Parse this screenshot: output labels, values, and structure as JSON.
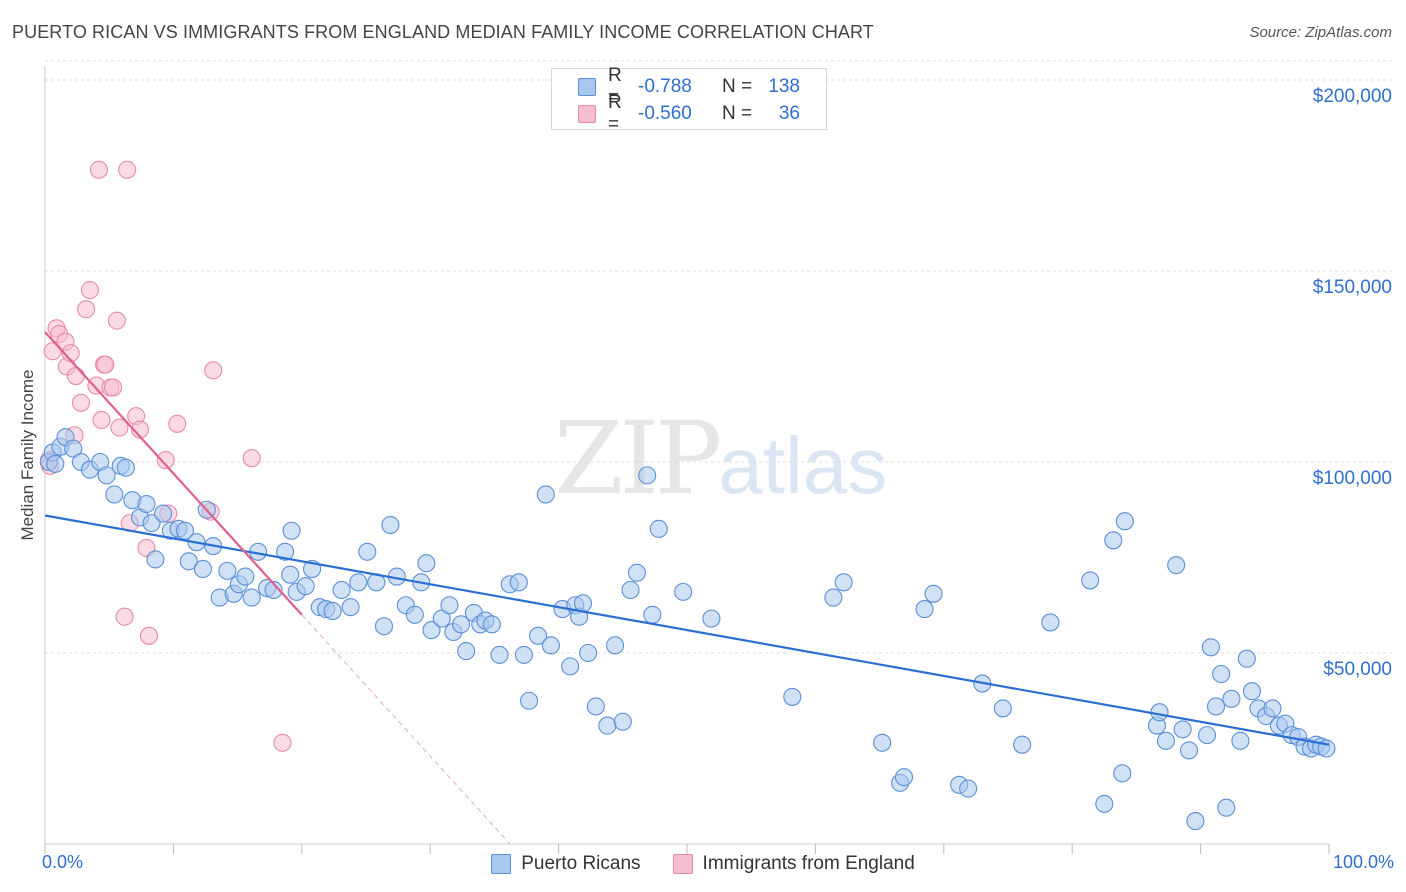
{
  "header": {
    "title": "PUERTO RICAN VS IMMIGRANTS FROM ENGLAND MEDIAN FAMILY INCOME CORRELATION CHART",
    "source": "Source: ZipAtlas.com"
  },
  "watermark": {
    "zip": "ZIP",
    "atlas": "atlas"
  },
  "legend_top": [
    {
      "r_label": "R =",
      "r_value": "-0.788",
      "n_label": "N =",
      "n_value": "138"
    },
    {
      "r_label": "R =",
      "r_value": "-0.560",
      "n_label": "N =",
      "n_value": "36"
    }
  ],
  "legend_bottom": [
    "Puerto Ricans",
    "Immigrants from England"
  ],
  "colors": {
    "blue_fill": "#a9c8ef",
    "blue_stroke": "#5b8fd6",
    "blue_line": "#2a6fd1",
    "pink_fill": "#f6bdd0",
    "pink_stroke": "#e88aa9",
    "pink_line": "#e0608b",
    "grid": "#dddddd",
    "tick_text": "#2f6fd0"
  },
  "chart_data": {
    "type": "scatter",
    "title": "PUERTO RICAN VS IMMIGRANTS FROM ENGLAND MEDIAN FAMILY INCOME CORRELATION CHART",
    "xlabel": "",
    "ylabel": "Median Family Income",
    "xlim": [
      0,
      100
    ],
    "ylim": [
      0,
      205000
    ],
    "x_tick_labels": [
      "0.0%",
      "100.0%"
    ],
    "y_ticks": [
      {
        "value": 50000,
        "label": "$50,000"
      },
      {
        "value": 100000,
        "label": "$100,000"
      },
      {
        "value": 150000,
        "label": "$150,000"
      },
      {
        "value": 200000,
        "label": "$200,000"
      }
    ],
    "grid": "horizontal dashed",
    "legend_placement": "top-center",
    "series": [
      {
        "name": "Puerto Ricans",
        "r": -0.788,
        "n": 138,
        "trend": {
          "x": [
            0,
            100
          ],
          "y": [
            86000,
            26000
          ],
          "style": "solid"
        },
        "points": [
          [
            0.3,
            100000
          ],
          [
            0.6,
            102500
          ],
          [
            0.8,
            99500
          ],
          [
            1.2,
            104000
          ],
          [
            1.6,
            106500
          ],
          [
            2.2,
            103500
          ],
          [
            2.8,
            100000
          ],
          [
            3.5,
            98000
          ],
          [
            4.3,
            100000
          ],
          [
            4.8,
            96500
          ],
          [
            5.4,
            91500
          ],
          [
            5.9,
            99000
          ],
          [
            6.3,
            98500
          ],
          [
            6.8,
            90000
          ],
          [
            7.4,
            85500
          ],
          [
            7.9,
            89000
          ],
          [
            8.3,
            84000
          ],
          [
            8.6,
            74500
          ],
          [
            9.2,
            86500
          ],
          [
            9.8,
            82000
          ],
          [
            10.4,
            82500
          ],
          [
            10.9,
            82000
          ],
          [
            11.2,
            74000
          ],
          [
            11.8,
            79000
          ],
          [
            12.3,
            72000
          ],
          [
            12.6,
            87500
          ],
          [
            13.1,
            78000
          ],
          [
            13.6,
            64500
          ],
          [
            14.2,
            71500
          ],
          [
            14.7,
            65500
          ],
          [
            15.1,
            68000
          ],
          [
            15.6,
            70000
          ],
          [
            16.1,
            64500
          ],
          [
            16.6,
            76500
          ],
          [
            17.3,
            67000
          ],
          [
            17.8,
            66500
          ],
          [
            18.7,
            76500
          ],
          [
            19.1,
            70500
          ],
          [
            19.2,
            82000
          ],
          [
            19.6,
            66000
          ],
          [
            20.3,
            67500
          ],
          [
            20.8,
            72000
          ],
          [
            21.4,
            62000
          ],
          [
            21.9,
            61500
          ],
          [
            22.4,
            61000
          ],
          [
            23.1,
            66500
          ],
          [
            23.8,
            62000
          ],
          [
            24.4,
            68500
          ],
          [
            25.1,
            76500
          ],
          [
            25.8,
            68500
          ],
          [
            26.4,
            57000
          ],
          [
            26.9,
            83500
          ],
          [
            27.4,
            70000
          ],
          [
            28.1,
            62500
          ],
          [
            28.8,
            60000
          ],
          [
            29.3,
            68500
          ],
          [
            29.7,
            73500
          ],
          [
            30.1,
            56000
          ],
          [
            30.9,
            59000
          ],
          [
            31.5,
            62500
          ],
          [
            31.8,
            55500
          ],
          [
            32.4,
            57500
          ],
          [
            32.8,
            50500
          ],
          [
            33.4,
            60500
          ],
          [
            33.9,
            57500
          ],
          [
            34.3,
            58500
          ],
          [
            34.8,
            57500
          ],
          [
            35.4,
            49500
          ],
          [
            36.2,
            68000
          ],
          [
            36.9,
            68500
          ],
          [
            37.3,
            49500
          ],
          [
            37.7,
            37500
          ],
          [
            38.4,
            54500
          ],
          [
            39.0,
            91500
          ],
          [
            39.4,
            52000
          ],
          [
            40.3,
            61500
          ],
          [
            40.9,
            46500
          ],
          [
            41.3,
            62500
          ],
          [
            41.6,
            59500
          ],
          [
            41.9,
            63000
          ],
          [
            42.3,
            50000
          ],
          [
            42.9,
            36000
          ],
          [
            43.8,
            31000
          ],
          [
            44.4,
            52000
          ],
          [
            45.0,
            32000
          ],
          [
            45.6,
            66500
          ],
          [
            46.1,
            71000
          ],
          [
            46.9,
            96500
          ],
          [
            47.3,
            60000
          ],
          [
            47.8,
            82500
          ],
          [
            49.7,
            66000
          ],
          [
            51.9,
            59000
          ],
          [
            58.2,
            38500
          ],
          [
            61.4,
            64500
          ],
          [
            62.2,
            68500
          ],
          [
            65.2,
            26500
          ],
          [
            66.6,
            16000
          ],
          [
            66.9,
            17500
          ],
          [
            68.5,
            61500
          ],
          [
            69.2,
            65500
          ],
          [
            71.2,
            15500
          ],
          [
            71.9,
            14500
          ],
          [
            73.0,
            42000
          ],
          [
            74.6,
            35500
          ],
          [
            76.1,
            26000
          ],
          [
            78.3,
            58000
          ],
          [
            81.4,
            69000
          ],
          [
            82.5,
            10500
          ],
          [
            83.2,
            79500
          ],
          [
            83.9,
            18500
          ],
          [
            84.1,
            84500
          ],
          [
            86.6,
            31000
          ],
          [
            86.8,
            34500
          ],
          [
            87.3,
            27000
          ],
          [
            88.1,
            73000
          ],
          [
            88.6,
            30000
          ],
          [
            89.1,
            24500
          ],
          [
            89.6,
            6000
          ],
          [
            90.5,
            28500
          ],
          [
            90.8,
            51500
          ],
          [
            91.2,
            36000
          ],
          [
            91.6,
            44500
          ],
          [
            92.0,
            9500
          ],
          [
            92.4,
            38000
          ],
          [
            93.1,
            27000
          ],
          [
            93.6,
            48500
          ],
          [
            94.0,
            40000
          ],
          [
            94.5,
            35500
          ],
          [
            95.1,
            33500
          ],
          [
            95.6,
            35500
          ],
          [
            96.1,
            31000
          ],
          [
            96.6,
            31500
          ],
          [
            97.1,
            28500
          ],
          [
            97.6,
            28000
          ],
          [
            98.1,
            25500
          ],
          [
            98.6,
            25000
          ],
          [
            99.0,
            26000
          ],
          [
            99.4,
            25500
          ],
          [
            99.8,
            25000
          ]
        ]
      },
      {
        "name": "Immigrants from England",
        "r": -0.56,
        "n": 36,
        "trend": {
          "x": [
            0,
            20
          ],
          "y": [
            134000,
            60000
          ],
          "style": "solid",
          "extension_to_x": 100,
          "extension_style": "dashed"
        },
        "points": [
          [
            0.3,
            100500
          ],
          [
            0.4,
            99000
          ],
          [
            0.6,
            129000
          ],
          [
            0.9,
            135000
          ],
          [
            1.1,
            133500
          ],
          [
            1.6,
            131500
          ],
          [
            1.7,
            125000
          ],
          [
            2.0,
            128500
          ],
          [
            2.3,
            107000
          ],
          [
            2.4,
            122500
          ],
          [
            2.8,
            115500
          ],
          [
            3.2,
            140000
          ],
          [
            3.5,
            145000
          ],
          [
            4.0,
            120000
          ],
          [
            4.2,
            176500
          ],
          [
            4.4,
            111000
          ],
          [
            4.6,
            125500
          ],
          [
            4.7,
            125500
          ],
          [
            5.1,
            119500
          ],
          [
            5.3,
            119500
          ],
          [
            5.6,
            137000
          ],
          [
            5.8,
            109000
          ],
          [
            6.2,
            59500
          ],
          [
            6.4,
            176500
          ],
          [
            6.6,
            84000
          ],
          [
            7.1,
            112000
          ],
          [
            7.4,
            108500
          ],
          [
            7.9,
            77500
          ],
          [
            8.1,
            54500
          ],
          [
            9.4,
            100500
          ],
          [
            9.6,
            86500
          ],
          [
            10.3,
            110000
          ],
          [
            12.9,
            87000
          ],
          [
            13.1,
            124000
          ],
          [
            16.1,
            101000
          ],
          [
            18.5,
            26500
          ]
        ]
      }
    ]
  }
}
